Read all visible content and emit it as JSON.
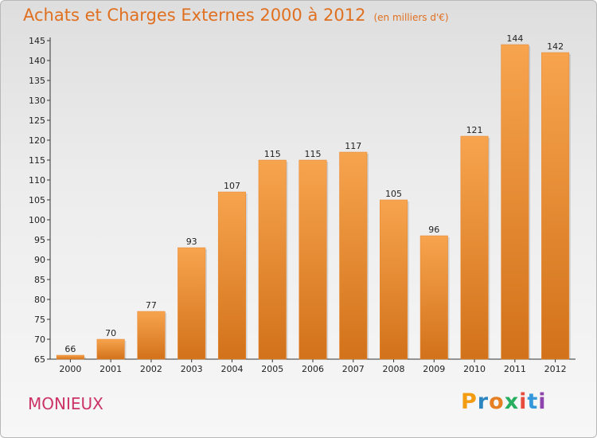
{
  "header": {
    "title": "Achats et Charges Externes 2000 à 2012",
    "unit": "(en milliers d'€)"
  },
  "commune": "MONIEUX",
  "logo": {
    "letters": [
      "P",
      "r",
      "o",
      "x",
      "i",
      "t",
      "i"
    ],
    "colors": [
      "#f39c12",
      "#2e86c1",
      "#e67e22",
      "#27ae60",
      "#e74c3c",
      "#3498db",
      "#8e44ad"
    ]
  },
  "chart_data": {
    "type": "bar",
    "title": "Achats et Charges Externes 2000 à 2012",
    "subtitle": "(en milliers d'€)",
    "xlabel": "",
    "ylabel": "",
    "categories": [
      "2000",
      "2001",
      "2002",
      "2003",
      "2004",
      "2005",
      "2006",
      "2007",
      "2008",
      "2009",
      "2010",
      "2011",
      "2012"
    ],
    "values": [
      66,
      70,
      77,
      93,
      107,
      115,
      115,
      117,
      105,
      96,
      121,
      144,
      142
    ],
    "ylim": [
      65,
      145
    ],
    "yticks": [
      65,
      70,
      75,
      80,
      85,
      90,
      95,
      100,
      105,
      110,
      115,
      120,
      125,
      130,
      135,
      140,
      145
    ],
    "grid": false,
    "bar_color": "#f0923a",
    "bar_color_dark": "#d2721a"
  }
}
